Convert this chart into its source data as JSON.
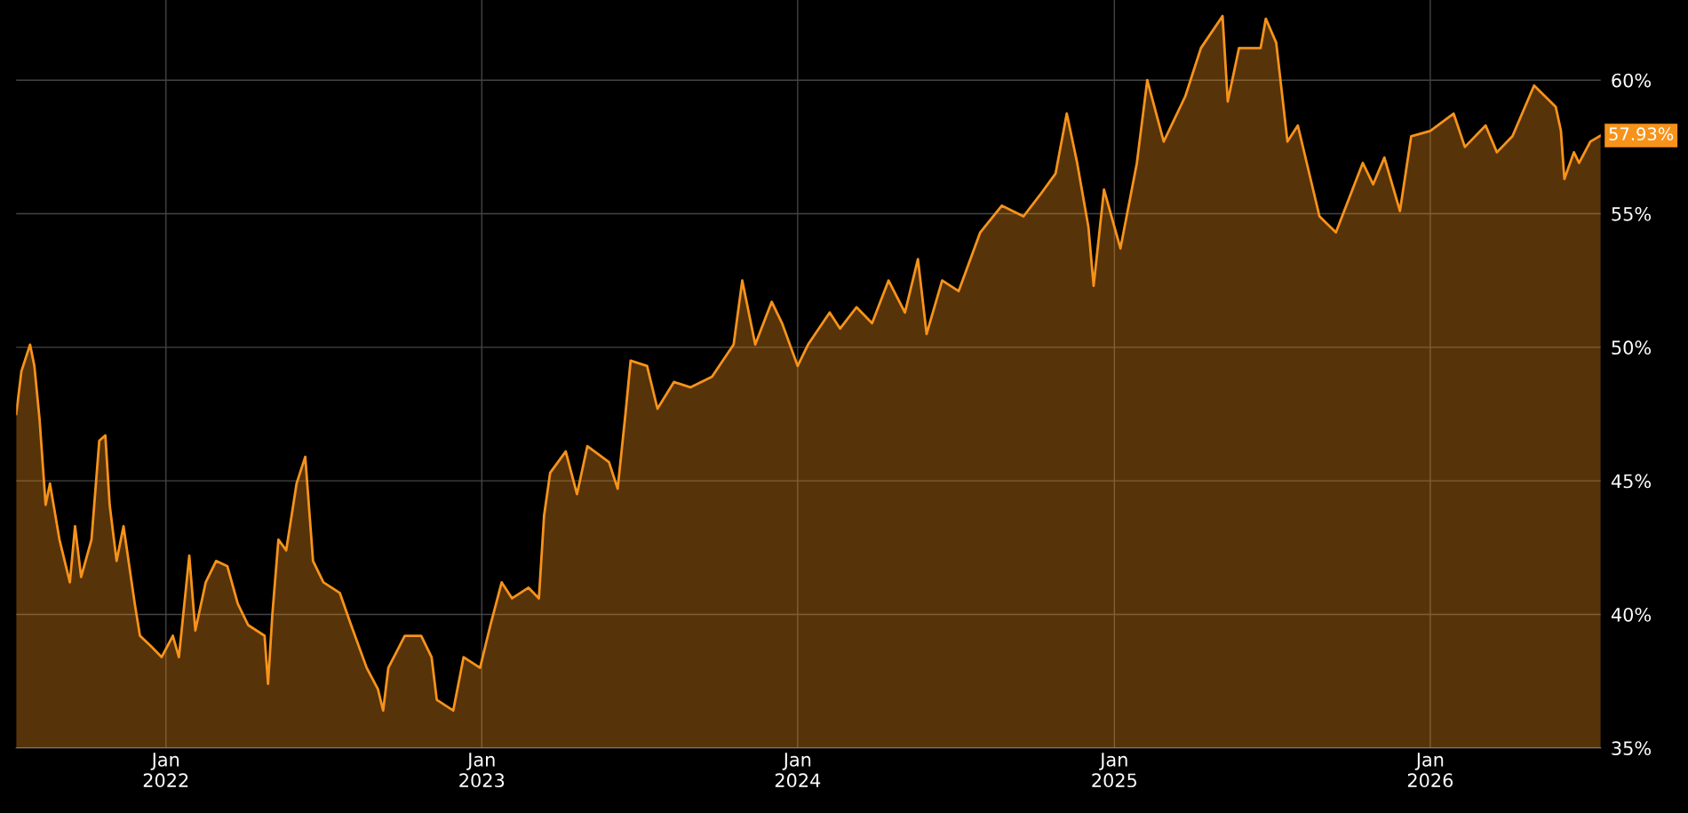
{
  "chart_data": {
    "type": "area",
    "color": "#f7931a",
    "x": [
      "2021-07-12",
      "2021-07-18",
      "2021-07-28",
      "2021-08-02",
      "2021-08-08",
      "2021-08-15",
      "2021-08-20",
      "2021-08-31",
      "2021-09-12",
      "2021-09-18",
      "2021-09-25",
      "2021-10-07",
      "2021-10-16",
      "2021-10-23",
      "2021-10-28",
      "2021-11-05",
      "2021-11-13",
      "2021-11-26",
      "2021-12-02",
      "2021-12-15",
      "2021-12-27",
      "2022-01-09",
      "2022-01-16",
      "2022-01-28",
      "2022-02-04",
      "2022-02-16",
      "2022-02-28",
      "2022-03-13",
      "2022-03-25",
      "2022-04-06",
      "2022-04-25",
      "2022-04-29",
      "2022-05-04",
      "2022-05-11",
      "2022-05-20",
      "2022-06-01",
      "2022-06-11",
      "2022-06-20",
      "2022-07-02",
      "2022-07-21",
      "2022-08-03",
      "2022-08-21",
      "2022-09-03",
      "2022-09-09",
      "2022-09-15",
      "2022-10-04",
      "2022-10-23",
      "2022-11-04",
      "2022-11-10",
      "2022-11-29",
      "2022-12-11",
      "2022-12-30",
      "2023-01-11",
      "2023-01-24",
      "2023-02-05",
      "2023-02-24",
      "2023-03-08",
      "2023-03-14",
      "2023-03-21",
      "2023-04-08",
      "2023-04-21",
      "2023-05-03",
      "2023-05-28",
      "2023-06-07",
      "2023-06-16",
      "2023-06-22",
      "2023-07-11",
      "2023-07-23",
      "2023-08-11",
      "2023-08-30",
      "2023-09-24",
      "2023-10-19",
      "2023-10-29",
      "2023-11-13",
      "2023-12-02",
      "2023-12-14",
      "2024-01-01",
      "2024-01-13",
      "2024-02-07",
      "2024-02-19",
      "2024-03-09",
      "2024-03-27",
      "2024-04-15",
      "2024-05-04",
      "2024-05-19",
      "2024-05-29",
      "2024-06-16",
      "2024-07-05",
      "2024-07-30",
      "2024-08-24",
      "2024-09-18",
      "2024-10-07",
      "2024-10-25",
      "2024-11-07",
      "2024-11-19",
      "2024-12-02",
      "2024-12-08",
      "2024-12-20",
      "2025-01-08",
      "2025-01-27",
      "2025-02-08",
      "2025-02-27",
      "2025-03-24",
      "2025-04-11",
      "2025-05-06",
      "2025-05-12",
      "2025-05-25",
      "2025-06-19",
      "2025-06-25",
      "2025-07-07",
      "2025-07-20",
      "2025-08-01",
      "2025-08-26",
      "2025-09-14",
      "2025-10-15",
      "2025-10-27",
      "2025-11-09",
      "2025-11-27",
      "2025-12-10",
      "2026-01-01",
      "2026-01-28",
      "2026-02-10",
      "2026-03-06",
      "2026-03-19",
      "2026-04-06",
      "2026-05-01",
      "2026-05-26",
      "2026-06-01",
      "2026-06-05",
      "2026-06-16",
      "2026-06-22",
      "2026-07-05",
      "2026-07-17"
    ],
    "values": [
      47.5,
      49.1,
      50.1,
      49.3,
      47.3,
      44.1,
      44.9,
      42.8,
      41.2,
      43.3,
      41.4,
      42.8,
      46.5,
      46.7,
      44.1,
      42.0,
      43.3,
      40.4,
      39.2,
      38.8,
      38.4,
      39.2,
      38.4,
      42.2,
      39.4,
      41.2,
      42.0,
      41.8,
      40.4,
      39.6,
      39.2,
      37.4,
      40.0,
      42.8,
      42.4,
      44.9,
      45.9,
      42.0,
      41.2,
      40.8,
      39.6,
      38.0,
      37.2,
      36.4,
      38.0,
      39.2,
      39.2,
      38.4,
      36.8,
      36.4,
      38.4,
      38.0,
      39.6,
      41.2,
      40.6,
      41.0,
      40.6,
      43.7,
      45.3,
      46.1,
      44.5,
      46.3,
      45.7,
      44.7,
      47.5,
      49.5,
      49.3,
      47.7,
      48.7,
      48.5,
      48.9,
      50.1,
      52.5,
      50.1,
      51.7,
      50.9,
      49.3,
      50.1,
      51.3,
      50.7,
      51.5,
      50.9,
      52.5,
      51.3,
      53.3,
      50.5,
      52.5,
      52.1,
      54.3,
      55.3,
      54.9,
      55.7,
      56.5,
      58.75,
      56.9,
      54.5,
      52.3,
      55.9,
      53.7,
      56.9,
      60.0,
      57.7,
      59.4,
      61.2,
      62.4,
      59.2,
      61.2,
      61.2,
      62.3,
      61.4,
      57.7,
      58.3,
      54.9,
      54.3,
      56.9,
      56.1,
      57.1,
      55.1,
      57.9,
      58.1,
      58.75,
      57.5,
      58.3,
      57.3,
      57.9,
      59.8,
      59.0,
      58.1,
      56.3,
      57.3,
      56.9,
      57.7,
      57.93
    ],
    "xlim": [
      "2021-07-12",
      "2026-07-17"
    ],
    "xticks": [
      {
        "value": "2022-01-01",
        "label": "Jan\n2022"
      },
      {
        "value": "2023-01-01",
        "label": "Jan\n2023"
      },
      {
        "value": "2024-01-01",
        "label": "Jan\n2024"
      },
      {
        "value": "2025-01-01",
        "label": "Jan\n2025"
      },
      {
        "value": "2026-01-01",
        "label": "Jan\n2026"
      }
    ],
    "ylim": [
      35,
      63
    ],
    "yticks": [
      {
        "value": 35,
        "label": "35%"
      },
      {
        "value": 40,
        "label": "40%"
      },
      {
        "value": 45,
        "label": "45%"
      },
      {
        "value": 50,
        "label": "50%"
      },
      {
        "value": 55,
        "label": "55%"
      },
      {
        "value": 60,
        "label": "60%"
      }
    ],
    "grid": true,
    "annotations": [
      {
        "text": "57.93%",
        "x": "2026-07-17",
        "y": 57.93
      }
    ]
  }
}
